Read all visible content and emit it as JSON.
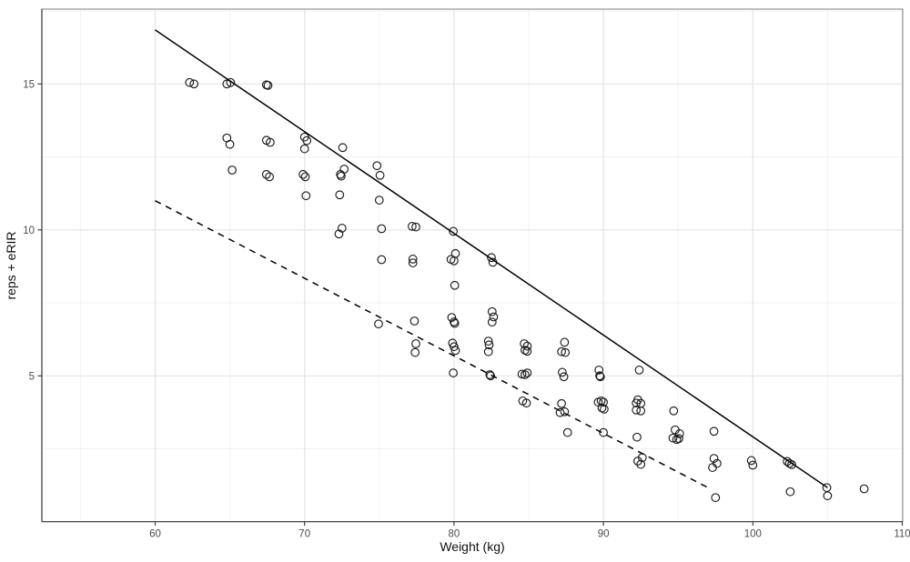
{
  "chart_data": {
    "type": "scatter",
    "title": "",
    "xlabel": "Weight (kg)",
    "ylabel": "reps + eRIR",
    "x_ticks": [
      60,
      70,
      80,
      90,
      100,
      110
    ],
    "y_ticks": [
      5,
      10,
      15
    ],
    "x_minor_ticks": [
      55,
      65,
      75,
      85,
      95,
      105
    ],
    "y_minor_ticks": [
      2.5,
      7.5,
      12.5,
      17.5
    ],
    "xlim": [
      52.4,
      110
    ],
    "ylim": [
      0,
      17.6
    ],
    "grid": "major+minor",
    "legend": "none",
    "marker": "open-circle",
    "points": [
      [
        62.3,
        15.05
      ],
      [
        62.6,
        15.0
      ],
      [
        64.8,
        15.0
      ],
      [
        65.05,
        15.05
      ],
      [
        64.8,
        13.15
      ],
      [
        65.0,
        12.93
      ],
      [
        65.15,
        12.05
      ],
      [
        67.45,
        14.97
      ],
      [
        67.55,
        14.95
      ],
      [
        67.45,
        13.07
      ],
      [
        67.7,
        13.0
      ],
      [
        67.45,
        11.9
      ],
      [
        67.65,
        11.82
      ],
      [
        70.0,
        13.18
      ],
      [
        70.15,
        13.06
      ],
      [
        70.0,
        12.78
      ],
      [
        69.9,
        11.9
      ],
      [
        70.05,
        11.82
      ],
      [
        70.1,
        11.17
      ],
      [
        72.55,
        12.82
      ],
      [
        72.65,
        12.08
      ],
      [
        72.4,
        11.9
      ],
      [
        72.45,
        11.84
      ],
      [
        72.35,
        11.2
      ],
      [
        72.5,
        10.06
      ],
      [
        72.3,
        9.86
      ],
      [
        74.85,
        12.2
      ],
      [
        75.05,
        11.87
      ],
      [
        75.0,
        11.02
      ],
      [
        75.15,
        10.04
      ],
      [
        75.15,
        8.98
      ],
      [
        74.95,
        6.78
      ],
      [
        77.2,
        10.12
      ],
      [
        77.45,
        10.1
      ],
      [
        77.25,
        9.0
      ],
      [
        77.25,
        8.87
      ],
      [
        77.35,
        6.88
      ],
      [
        77.45,
        6.1
      ],
      [
        77.4,
        5.8
      ],
      [
        79.95,
        9.95
      ],
      [
        80.1,
        9.19
      ],
      [
        79.8,
        8.99
      ],
      [
        80.0,
        8.94
      ],
      [
        80.05,
        8.1
      ],
      [
        79.85,
        7.0
      ],
      [
        80.0,
        6.85
      ],
      [
        80.05,
        6.8
      ],
      [
        79.9,
        6.12
      ],
      [
        80.0,
        6.0
      ],
      [
        80.1,
        5.87
      ],
      [
        79.95,
        5.1
      ],
      [
        82.5,
        9.05
      ],
      [
        82.6,
        8.89
      ],
      [
        82.55,
        7.2
      ],
      [
        82.65,
        7.02
      ],
      [
        82.55,
        6.84
      ],
      [
        82.3,
        6.19
      ],
      [
        82.35,
        6.06
      ],
      [
        82.3,
        5.83
      ],
      [
        82.4,
        5.04
      ],
      [
        82.45,
        5.0
      ],
      [
        84.7,
        6.1
      ],
      [
        84.9,
        6.02
      ],
      [
        84.75,
        5.88
      ],
      [
        84.9,
        5.84
      ],
      [
        84.55,
        5.06
      ],
      [
        84.75,
        5.04
      ],
      [
        84.9,
        5.1
      ],
      [
        84.6,
        4.14
      ],
      [
        84.85,
        4.07
      ],
      [
        87.4,
        6.15
      ],
      [
        87.2,
        5.83
      ],
      [
        87.45,
        5.8
      ],
      [
        87.25,
        5.12
      ],
      [
        87.35,
        4.97
      ],
      [
        87.2,
        4.05
      ],
      [
        87.1,
        3.74
      ],
      [
        87.4,
        3.77
      ],
      [
        87.6,
        3.06
      ],
      [
        89.7,
        5.2
      ],
      [
        89.75,
        5.0
      ],
      [
        89.8,
        4.97
      ],
      [
        89.65,
        4.1
      ],
      [
        89.85,
        4.14
      ],
      [
        90.0,
        4.1
      ],
      [
        89.9,
        3.9
      ],
      [
        90.05,
        3.86
      ],
      [
        90.0,
        3.06
      ],
      [
        92.4,
        5.2
      ],
      [
        92.3,
        4.18
      ],
      [
        92.2,
        4.07
      ],
      [
        92.5,
        4.06
      ],
      [
        92.2,
        3.83
      ],
      [
        92.5,
        3.8
      ],
      [
        92.25,
        2.9
      ],
      [
        92.6,
        2.2
      ],
      [
        92.3,
        2.08
      ],
      [
        92.5,
        1.97
      ],
      [
        94.7,
        3.8
      ],
      [
        94.8,
        3.15
      ],
      [
        95.1,
        3.02
      ],
      [
        94.65,
        2.87
      ],
      [
        94.9,
        2.82
      ],
      [
        95.05,
        2.85
      ],
      [
        97.4,
        3.1
      ],
      [
        97.4,
        2.17
      ],
      [
        97.6,
        2.0
      ],
      [
        97.3,
        1.86
      ],
      [
        97.5,
        0.83
      ],
      [
        99.9,
        2.1
      ],
      [
        100.0,
        1.94
      ],
      [
        102.3,
        2.07
      ],
      [
        102.45,
        2.0
      ],
      [
        102.6,
        1.96
      ],
      [
        102.5,
        1.03
      ],
      [
        104.95,
        1.17
      ],
      [
        105.0,
        0.89
      ],
      [
        107.45,
        1.13
      ]
    ],
    "lines": [
      {
        "name": "upper-trend-line",
        "style": "solid",
        "from": [
          60,
          16.85
        ],
        "to": [
          105,
          1.17
        ]
      },
      {
        "name": "lower-trend-line",
        "style": "dashed",
        "from": [
          60,
          11.0
        ],
        "to": [
          97.0,
          1.17
        ]
      }
    ],
    "colors": {
      "background": "#ffffff",
      "points": "#1a1a1a",
      "lines": "#000000",
      "grid_major": "#e4e4e4",
      "grid_minor": "#f1f1f1",
      "panel_border": "#8c8c8c",
      "axis_line": "#4a4a4a",
      "tick_mark": "#333333",
      "tick_label": "#4d4d4d",
      "axis_title": "#111111"
    }
  }
}
